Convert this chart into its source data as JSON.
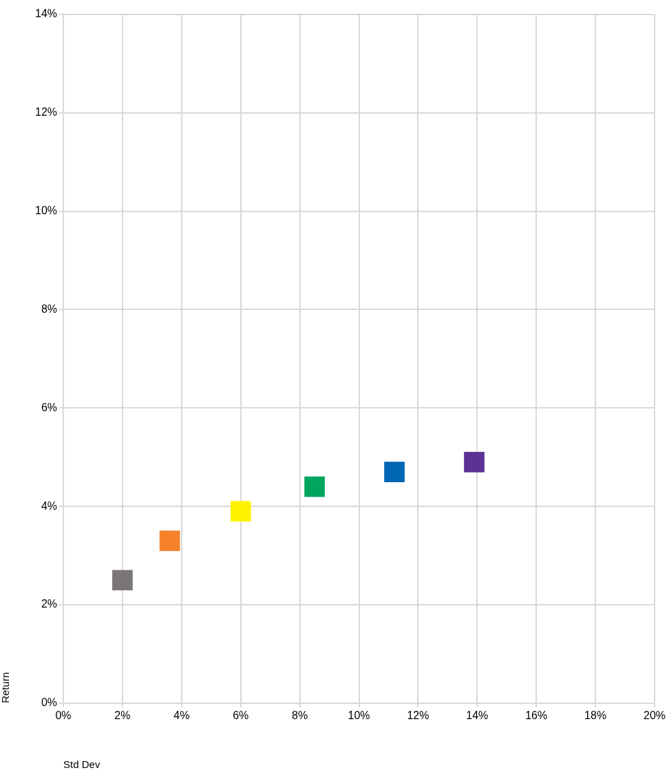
{
  "chart_data": {
    "type": "scatter",
    "xlabel": "Std Dev",
    "ylabel": "Return",
    "x": [
      2.0,
      3.6,
      6.0,
      8.5,
      11.2,
      13.9
    ],
    "values": [
      2.5,
      3.3,
      3.9,
      4.4,
      4.7,
      4.9
    ],
    "colors": [
      "#7a7677",
      "#f5822a",
      "#fff200",
      "#00a65d",
      "#0066b3",
      "#5c3293"
    ],
    "marker": "square",
    "xlim": [
      0,
      20
    ],
    "xticks": [
      {
        "value": 0,
        "label": "0%"
      },
      {
        "value": 2,
        "label": "2%"
      },
      {
        "value": 4,
        "label": "4%"
      },
      {
        "value": 6,
        "label": "6%"
      },
      {
        "value": 8,
        "label": "8%"
      },
      {
        "value": 10,
        "label": "10%"
      },
      {
        "value": 12,
        "label": "12%"
      },
      {
        "value": 14,
        "label": "14%"
      },
      {
        "value": 16,
        "label": "16%"
      },
      {
        "value": 18,
        "label": "18%"
      },
      {
        "value": 20,
        "label": "20%"
      }
    ],
    "ylim": [
      0,
      14
    ],
    "yticks": [
      {
        "value": 0,
        "label": "0%"
      },
      {
        "value": 2,
        "label": "2%"
      },
      {
        "value": 4,
        "label": "4%"
      },
      {
        "value": 6,
        "label": "6%"
      },
      {
        "value": 8,
        "label": "8%"
      },
      {
        "value": 10,
        "label": "10%"
      },
      {
        "value": 12,
        "label": "12%"
      },
      {
        "value": 14,
        "label": "14%"
      }
    ],
    "grid": true,
    "legend": false
  }
}
